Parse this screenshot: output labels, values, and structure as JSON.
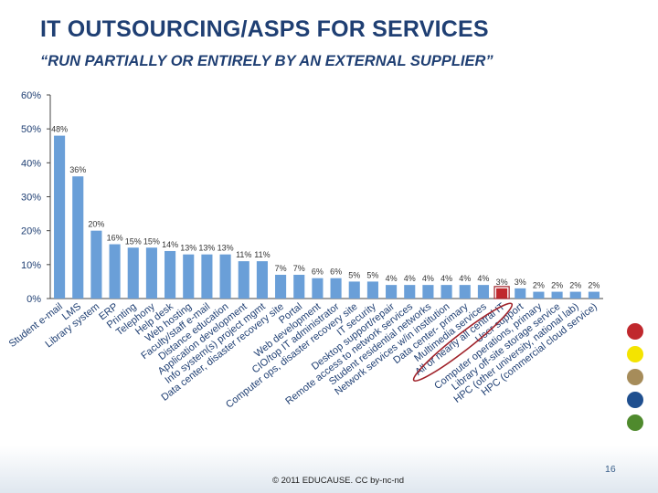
{
  "header": {
    "title": "IT OUTSOURCING/ASPS FOR SERVICES",
    "subtitle": "“RUN PARTIALLY OR ENTIRELY BY AN EXTERNAL SUPPLIER”"
  },
  "chart_data": {
    "type": "bar",
    "title": "",
    "xlabel": "",
    "ylabel": "",
    "ylim": [
      0,
      60
    ],
    "yticks": [
      "0%",
      "10%",
      "20%",
      "30%",
      "40%",
      "50%",
      "60%"
    ],
    "grid": false,
    "categories": [
      "Student e-mail",
      "LMS",
      "Library system",
      "ERP",
      "Printing",
      "Telephony",
      "Help desk",
      "Web hosting",
      "Faculty/staff e-mail",
      "Distance education",
      "Application development",
      "Info system(s) project mgmt",
      "Data center, disaster recovery site",
      "Portal",
      "Web development",
      "CIO/top IT administrator",
      "Computer ops, disaster recovery site",
      "IT security",
      "Desktop support/repair",
      "Remote access to network services",
      "Student residential networks",
      "Network services w/in institution",
      "Data center- primary",
      "Multimedia services",
      "All or nearly all central IT",
      "User support",
      "Computer operations, primary",
      "Library off-site storage service",
      "HPC (other university, national lab)",
      "HPC (commercial cloud service)"
    ],
    "values": [
      48,
      36,
      20,
      16,
      15,
      15,
      14,
      13,
      13,
      13,
      11,
      11,
      7,
      7,
      6,
      6,
      5,
      5,
      4,
      4,
      4,
      4,
      4,
      4,
      3,
      3,
      2,
      2,
      2,
      2
    ],
    "data_labels": [
      "48%",
      "36%",
      "20%",
      "16%",
      "15%",
      "15%",
      "14%",
      "13%",
      "13%",
      "13%",
      "11%",
      "11%",
      "7%",
      "7%",
      "6%",
      "6%",
      "5%",
      "5%",
      "4%",
      "4%",
      "4%",
      "4%",
      "4%",
      "4%",
      "3%",
      "3%",
      "2%",
      "2%",
      "2%",
      "2%"
    ],
    "highlighted_category": "All or nearly all central IT",
    "colors": {
      "bar": "#6a9fd8",
      "highlight_bar": "#c0282d",
      "annotation": "#a0232b",
      "axis": "#444444",
      "label": "#1f3f73"
    }
  },
  "side_dots": [
    "#c0282d",
    "#f4e400",
    "#a68c5a",
    "#1f4f8f",
    "#4f8a2d"
  ],
  "footer": {
    "copyright": "© 2011 EDUCAUSE. CC by-nc-nd",
    "page_number": "16"
  }
}
